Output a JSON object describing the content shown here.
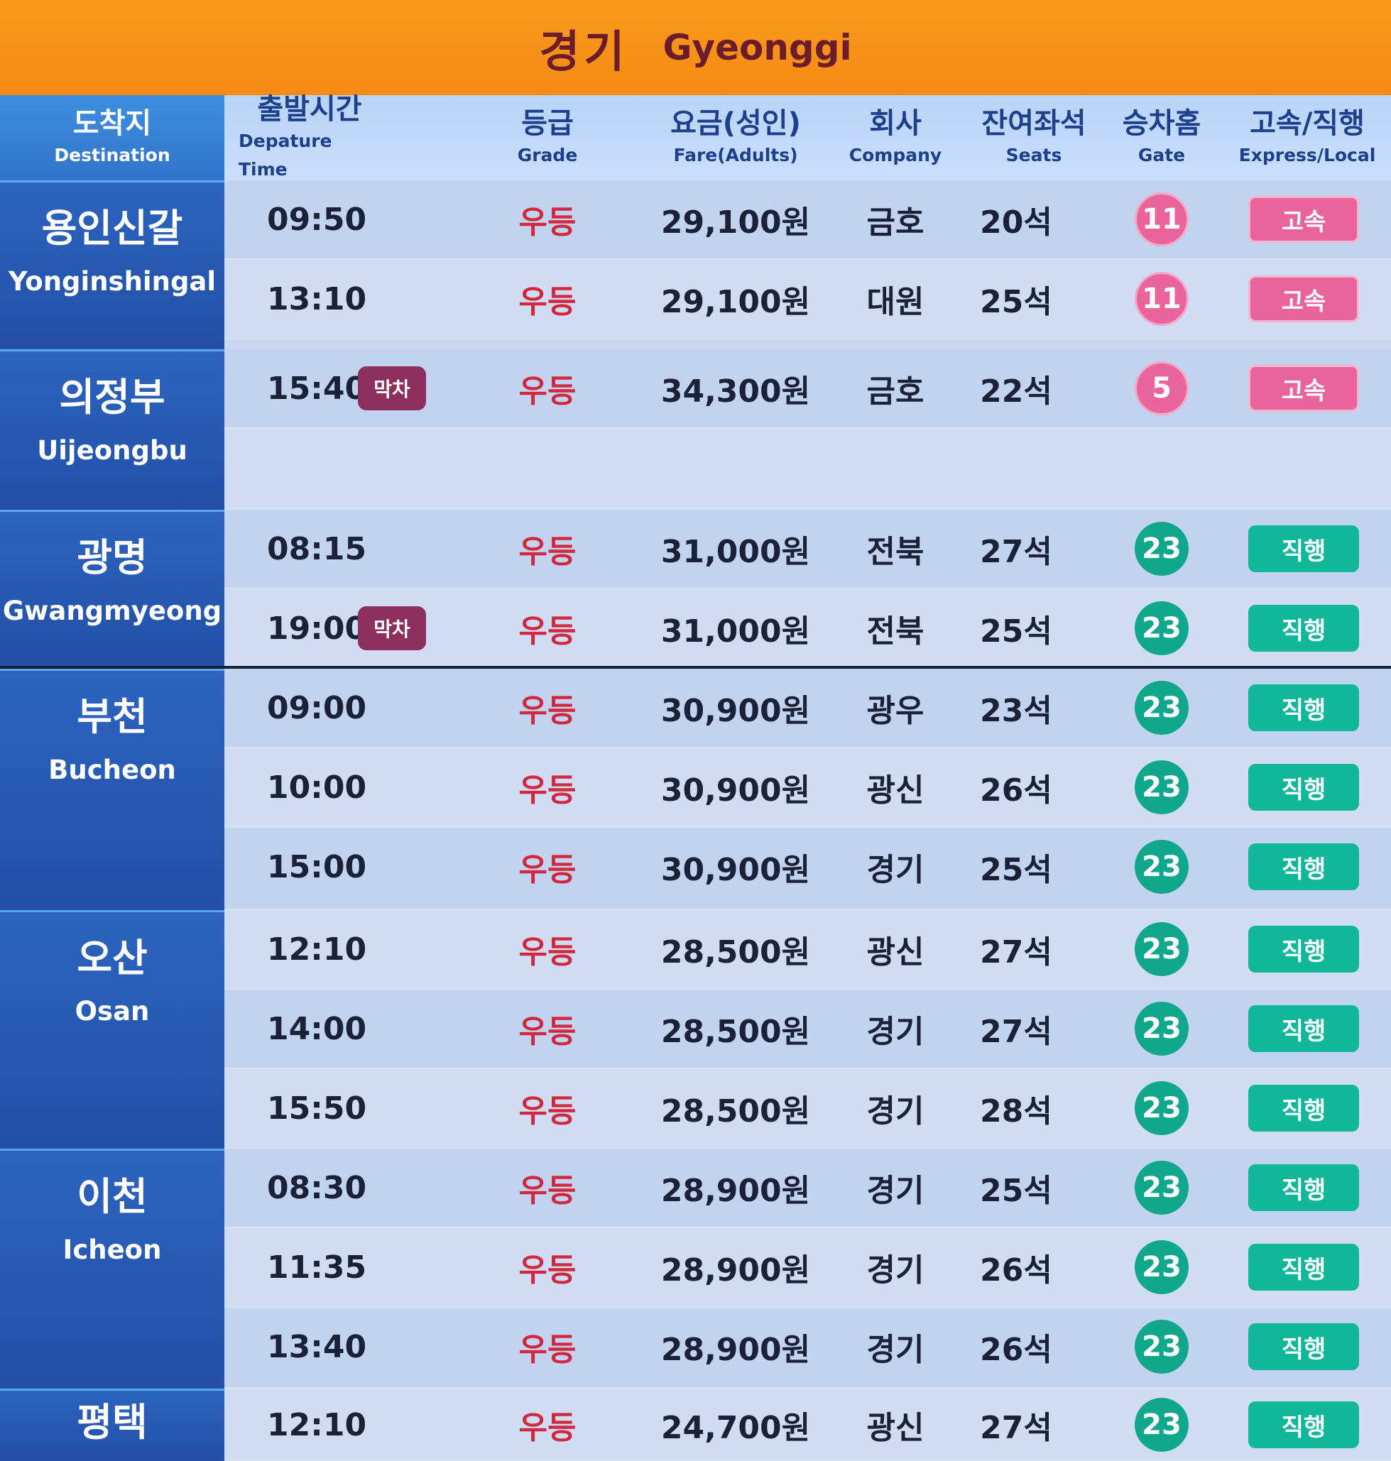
{
  "title": {
    "ko": "경기",
    "en": "Gyeonggi"
  },
  "headers": {
    "destination": {
      "ko": "도착지",
      "en": "Destination"
    },
    "time": {
      "ko": "출발시간",
      "en": "Depature Time"
    },
    "grade": {
      "ko": "등급",
      "en": "Grade"
    },
    "fare": {
      "ko": "요금(성인)",
      "en": "Fare(Adults)"
    },
    "company": {
      "ko": "회사",
      "en": "Company"
    },
    "seats": {
      "ko": "잔여좌석",
      "en": "Seats"
    },
    "gate": {
      "ko": "승차홈",
      "en": "Gate"
    },
    "express": {
      "ko": "고속/직행",
      "en": "Express/Local"
    }
  },
  "destinations": [
    {
      "ko": "용인신갈",
      "en": "Yonginshingal"
    },
    {
      "ko": "의정부",
      "en": "Uijeongbu"
    },
    {
      "ko": "광명",
      "en": "Gwangmyeong"
    },
    {
      "ko": "부천",
      "en": "Bucheon"
    },
    {
      "ko": "오산",
      "en": "Osan"
    },
    {
      "ko": "이천",
      "en": "Icheon"
    },
    {
      "ko": "평택",
      "en": ""
    }
  ],
  "rows": [
    {
      "time": "09:50",
      "tag": "",
      "grade": "우등",
      "fare": "29,100원",
      "company": "금호",
      "seats": "20석",
      "gate": "11",
      "type": "고속"
    },
    {
      "time": "13:10",
      "tag": "",
      "grade": "우등",
      "fare": "29,100원",
      "company": "대원",
      "seats": "25석",
      "gate": "11",
      "type": "고속"
    },
    {
      "time": "15:40",
      "tag": "막차",
      "grade": "우등",
      "fare": "34,300원",
      "company": "금호",
      "seats": "22석",
      "gate": "5",
      "type": "고속"
    },
    {
      "time": "08:15",
      "tag": "",
      "grade": "우등",
      "fare": "31,000원",
      "company": "전북",
      "seats": "27석",
      "gate": "23",
      "type": "직행"
    },
    {
      "time": "19:00",
      "tag": "막차",
      "grade": "우등",
      "fare": "31,000원",
      "company": "전북",
      "seats": "25석",
      "gate": "23",
      "type": "직행"
    },
    {
      "time": "09:00",
      "tag": "",
      "grade": "우등",
      "fare": "30,900원",
      "company": "광우",
      "seats": "23석",
      "gate": "23",
      "type": "직행"
    },
    {
      "time": "10:00",
      "tag": "",
      "grade": "우등",
      "fare": "30,900원",
      "company": "광신",
      "seats": "26석",
      "gate": "23",
      "type": "직행"
    },
    {
      "time": "15:00",
      "tag": "",
      "grade": "우등",
      "fare": "30,900원",
      "company": "경기",
      "seats": "25석",
      "gate": "23",
      "type": "직행"
    },
    {
      "time": "12:10",
      "tag": "",
      "grade": "우등",
      "fare": "28,500원",
      "company": "광신",
      "seats": "27석",
      "gate": "23",
      "type": "직행"
    },
    {
      "time": "14:00",
      "tag": "",
      "grade": "우등",
      "fare": "28,500원",
      "company": "경기",
      "seats": "27석",
      "gate": "23",
      "type": "직행"
    },
    {
      "time": "15:50",
      "tag": "",
      "grade": "우등",
      "fare": "28,500원",
      "company": "경기",
      "seats": "28석",
      "gate": "23",
      "type": "직행"
    },
    {
      "time": "08:30",
      "tag": "",
      "grade": "우등",
      "fare": "28,900원",
      "company": "경기",
      "seats": "25석",
      "gate": "23",
      "type": "직행"
    },
    {
      "time": "11:35",
      "tag": "",
      "grade": "우등",
      "fare": "28,900원",
      "company": "경기",
      "seats": "26석",
      "gate": "23",
      "type": "직행"
    },
    {
      "time": "13:40",
      "tag": "",
      "grade": "우등",
      "fare": "28,900원",
      "company": "경기",
      "seats": "26석",
      "gate": "23",
      "type": "직행"
    },
    {
      "time": "12:10",
      "tag": "",
      "grade": "우등",
      "fare": "24,700원",
      "company": "광신",
      "seats": "27석",
      "gate": "23",
      "type": "직행"
    }
  ],
  "colors": {
    "banner": "#f58a14",
    "express": "#e8649a",
    "local": "#12b79a",
    "grade": "#d1283e",
    "last_bus": "#8c2f5c"
  }
}
